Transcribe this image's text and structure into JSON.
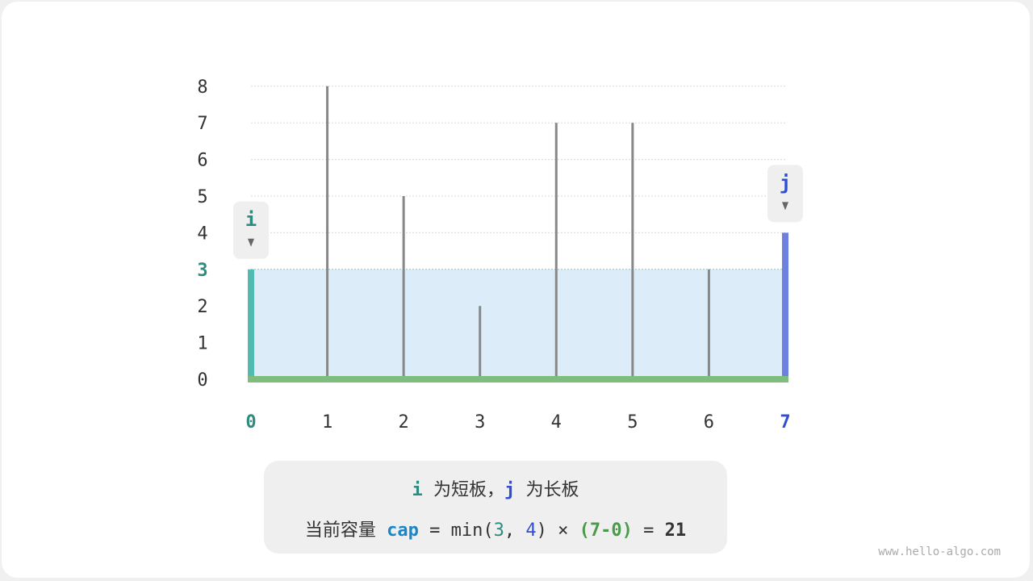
{
  "chart_data": {
    "type": "bar",
    "categories": [
      "0",
      "1",
      "2",
      "3",
      "4",
      "5",
      "6",
      "7"
    ],
    "values": [
      3,
      8,
      5,
      2,
      7,
      7,
      3,
      4
    ],
    "y_ticks": [
      "0",
      "1",
      "2",
      "3",
      "4",
      "5",
      "6",
      "7",
      "8"
    ],
    "ylim": [
      0,
      8
    ],
    "grid": true,
    "pointer_i": {
      "label": "i",
      "index": 0
    },
    "pointer_j": {
      "label": "j",
      "index": 7
    },
    "water_level": 3,
    "colors": {
      "i": "#52bbb1",
      "j": "#6b80e0",
      "bar": "#888888",
      "base": "#7fbd7f",
      "water": "#dcedf9",
      "i_text": "#2e8b7f",
      "j_text": "#2f4fd0"
    }
  },
  "caption": {
    "line1": {
      "i": "i",
      "text1": " 为短板，",
      "j": "j",
      "text2": " 为长板"
    },
    "line2": {
      "label": "当前容量 ",
      "cap": "cap",
      "eq": " = min(",
      "a": "3",
      "comma": ", ",
      "b": "4",
      "close": ")",
      "times": " × ",
      "paren": "(7-0)",
      "eq2": " = ",
      "result": "21"
    }
  },
  "watermark": "www.hello-algo.com"
}
